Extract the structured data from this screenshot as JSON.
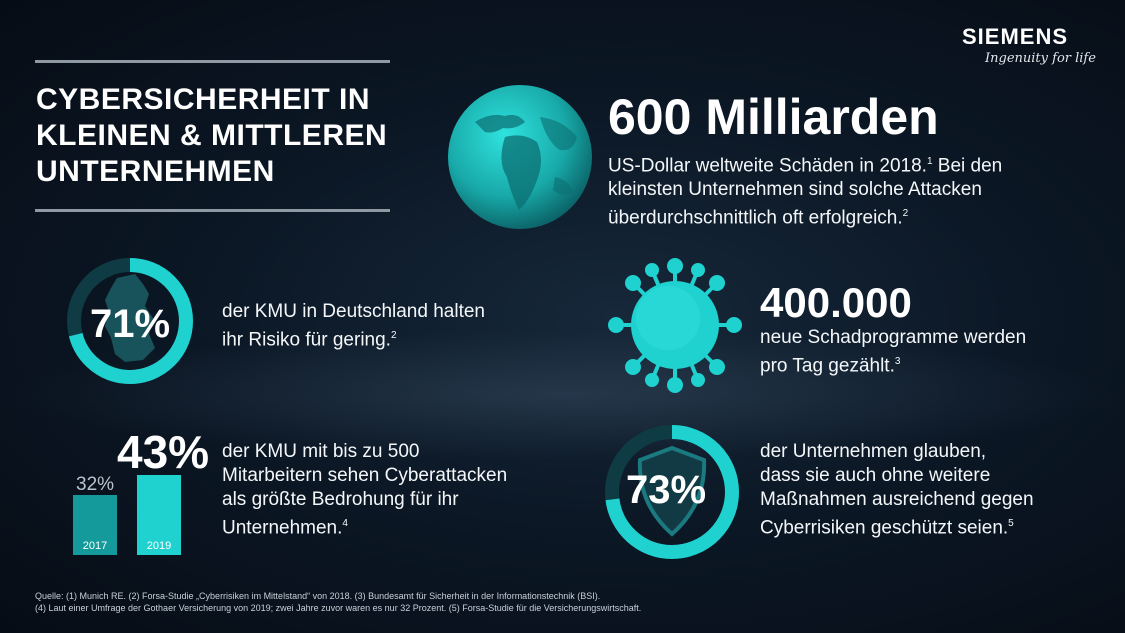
{
  "logo": {
    "word": "SIEMENS",
    "tagline": "Ingenuity for life"
  },
  "title": {
    "line1": "CYBERSICHERHEIT IN",
    "line2": "KLEINEN & MITTLEREN",
    "line3": "UNTERNEHMEN"
  },
  "stat_world": {
    "value": "600 Milliarden",
    "line1": "US-Dollar weltweite Schäden in 2018.",
    "sup1": "1",
    "line1b": " Bei den",
    "line2": "kleinsten Unternehmen sind solche Attacken",
    "line3": "überdurchschnittlich oft erfolgreich.",
    "sup3": "2"
  },
  "stat_germany": {
    "value": "71%",
    "percent": 71,
    "line1": "der KMU in Deutschland halten",
    "line2": "ihr Risiko für gering.",
    "sup": "2"
  },
  "stat_virus": {
    "value": "400.000",
    "line1": "neue Schadprogramme werden",
    "line2": "pro Tag gezählt.",
    "sup": "3"
  },
  "stat_bars": {
    "value": "43%",
    "bars": [
      {
        "label": "32%",
        "year": "2017",
        "value": 32
      },
      {
        "label": "43%",
        "year": "2019",
        "value": 43
      }
    ],
    "line1": "der KMU mit bis zu 500",
    "line2": "Mitarbeitern sehen Cyberattacken",
    "line3": "als größte Bedrohung für ihr",
    "line4": "Unternehmen.",
    "sup": "4"
  },
  "stat_shield": {
    "value": "73%",
    "percent": 73,
    "line1": "der Unternehmen glauben,",
    "line2": "dass sie auch ohne weitere",
    "line3": "Maßnahmen ausreichend gegen",
    "line4": "Cyberrisiken geschützt seien.",
    "sup": "5"
  },
  "sources": {
    "line1": "Quelle: (1) Munich RE. (2) Forsa-Studie „Cyberrisiken im Mittelstand“ von 2018. (3) Bundesamt für Sicherheit in der Informationstechnik (BSI).",
    "line2": "(4) Laut einer Umfrage der Gothaer Versicherung von 2019; zwei Jahre zuvor waren es nur 32 Prozent. (5) Forsa-Studie für die Versicherungswirtschaft."
  },
  "colors": {
    "accent": "#1fd1cf",
    "accent_dark": "#149a9a",
    "ring_track": "#0f3b44",
    "background": "#0c1826"
  }
}
